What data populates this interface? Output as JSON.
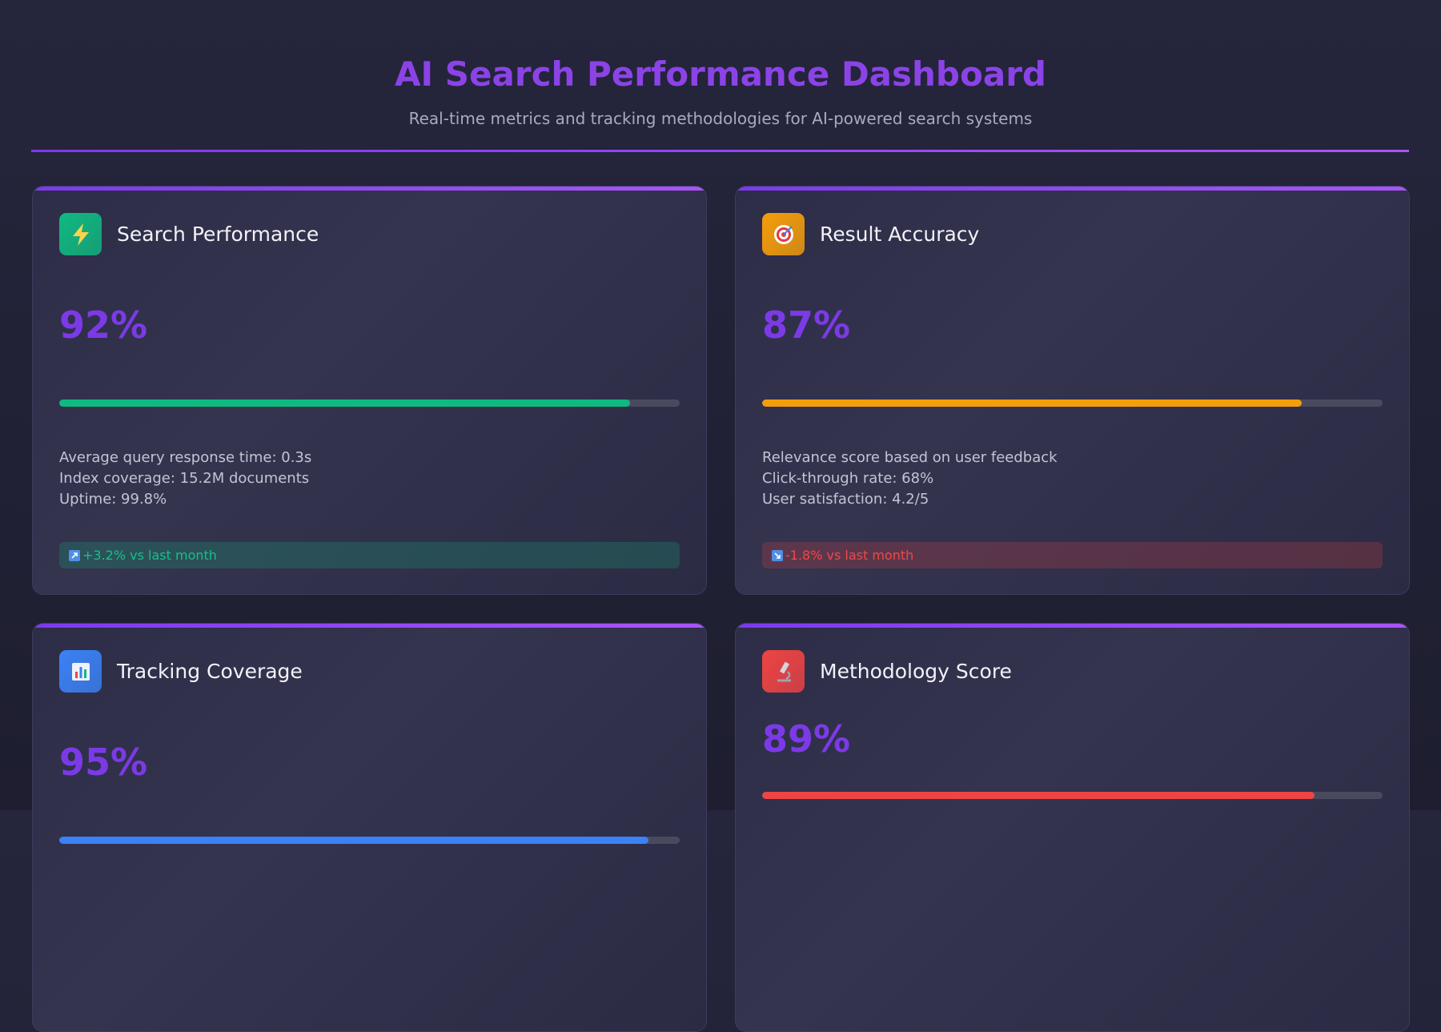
{
  "header": {
    "title": "AI Search Performance Dashboard",
    "subtitle": "Real-time metrics and tracking methodologies for AI-powered search systems"
  },
  "scale": [
    0,
    100
  ],
  "cards": [
    {
      "title": "Search Performance",
      "value": 92,
      "value_label": "92%",
      "color": "#10b981",
      "details": [
        "Average query response time: 0.3s",
        "Index coverage: 15.2M documents",
        "Uptime: 99.8%"
      ],
      "trend": "+3.2% vs last month",
      "trend_direction": "up"
    },
    {
      "title": "Result Accuracy",
      "value": 87,
      "value_label": "87%",
      "color": "#f59e0b",
      "details": [
        "Relevance score based on user feedback",
        "Click-through rate: 68%",
        "User satisfaction: 4.2/5"
      ],
      "trend": "-1.8% vs last month",
      "trend_direction": "down"
    },
    {
      "title": "Tracking Coverage",
      "value": 95,
      "value_label": "95%",
      "color": "#3b82f6"
    },
    {
      "title": "Methodology Score",
      "value": 89,
      "value_label": "89%",
      "color": "#ef4444"
    }
  ]
}
